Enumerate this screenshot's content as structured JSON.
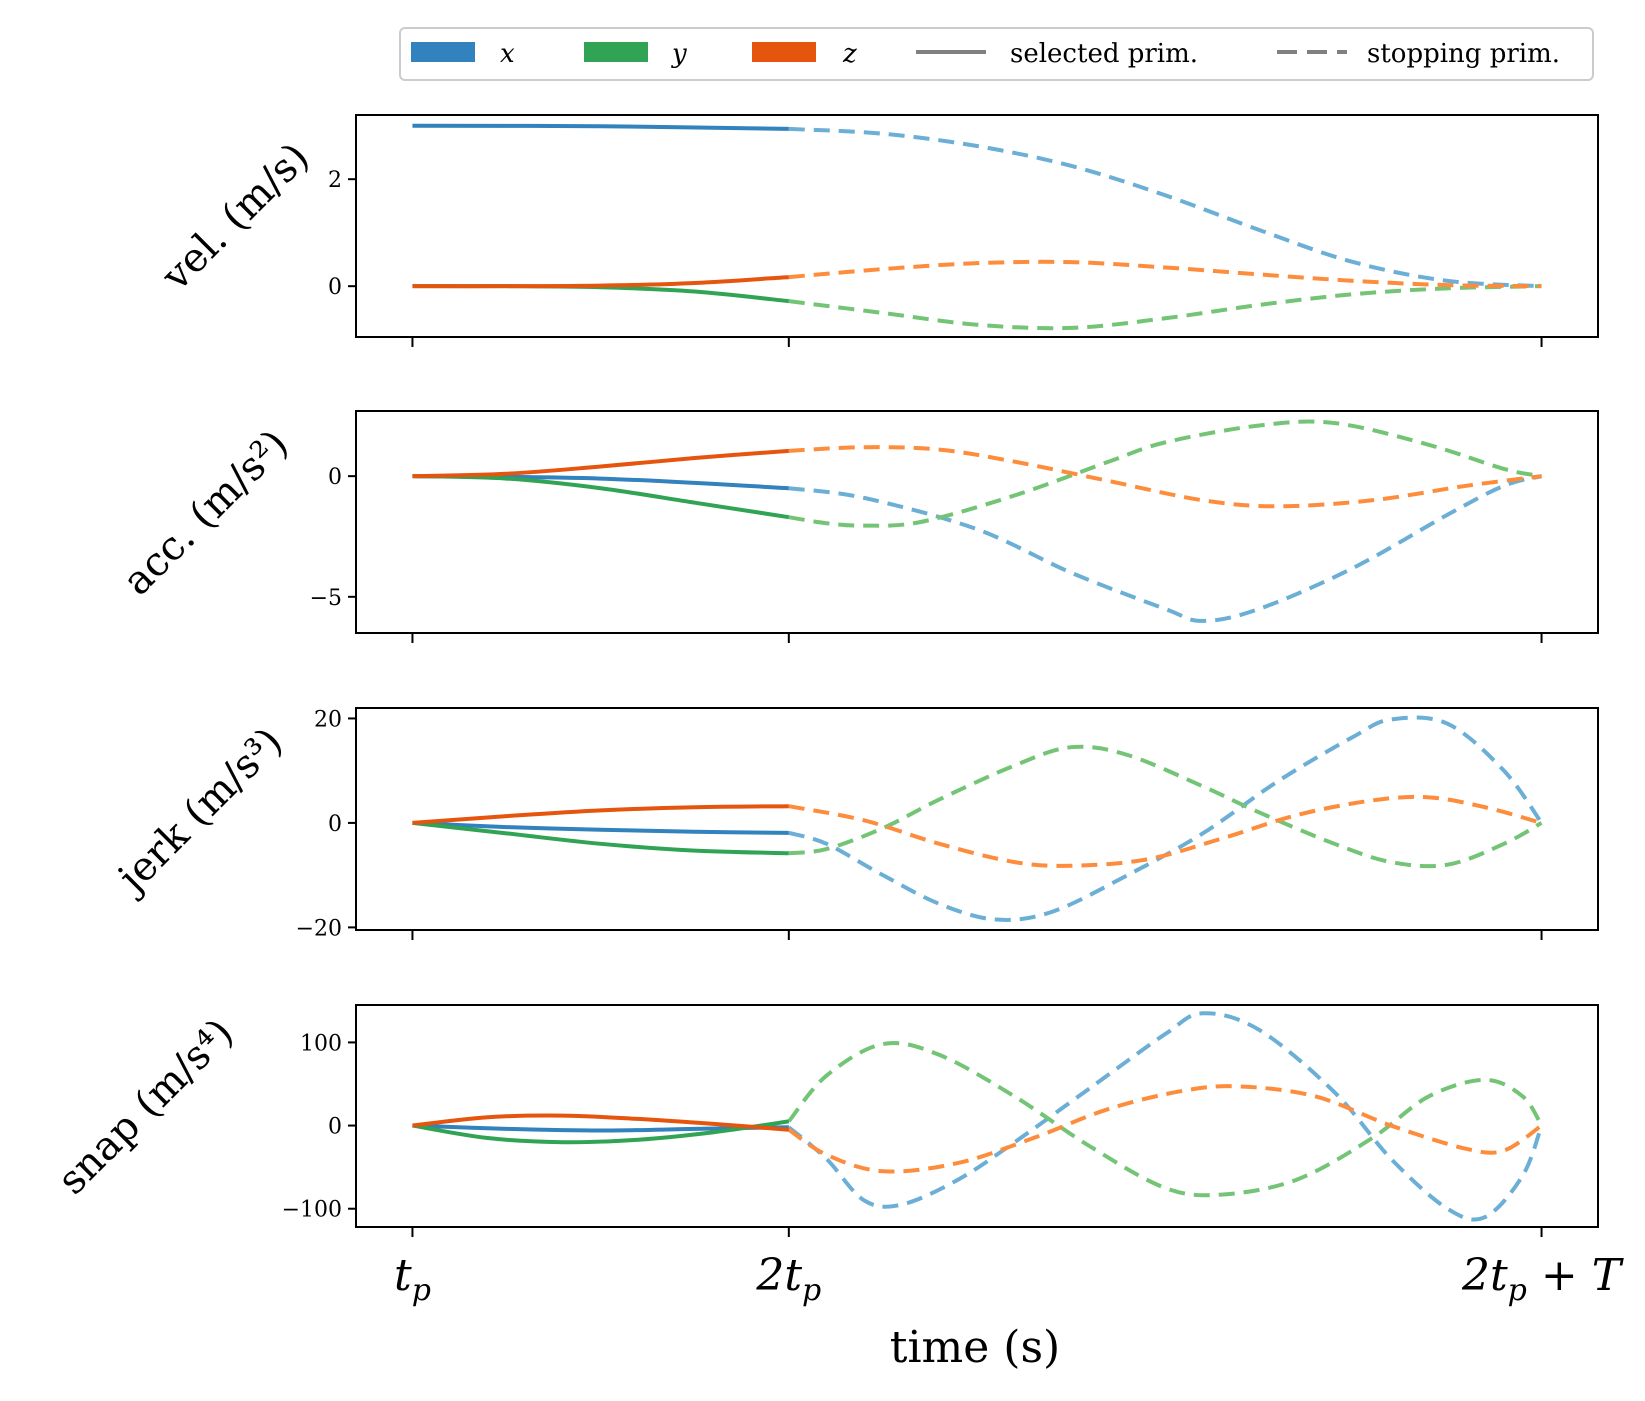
{
  "chart_data": {
    "type": "line",
    "xlabel": "time (s)",
    "x_ticks": [
      {
        "label": "t",
        "sub": "p",
        "suffix": "",
        "value": 1
      },
      {
        "label": "2t",
        "sub": "p",
        "suffix": "",
        "value": 2
      },
      {
        "label": "2t",
        "sub": "p",
        "suffix": " + T",
        "value": 4
      }
    ],
    "x_range": [
      0.85,
      4.15
    ],
    "switch_x": 2,
    "legend": {
      "placement": "top",
      "entries": [
        {
          "label": "x",
          "kind": "color",
          "color": "#3182bd"
        },
        {
          "label": "y",
          "kind": "color",
          "color": "#31a354"
        },
        {
          "label": "z",
          "kind": "color",
          "color": "#e6550d"
        },
        {
          "label": "selected prim.",
          "kind": "style",
          "style": "solid"
        },
        {
          "label": "stopping prim.",
          "kind": "style",
          "style": "dashed"
        }
      ]
    },
    "colors": {
      "x": {
        "selected": "#3182bd",
        "stopping": "#6baed6"
      },
      "y": {
        "selected": "#31a354",
        "stopping": "#74c476"
      },
      "z": {
        "selected": "#e6550d",
        "stopping": "#fd8d3c"
      }
    },
    "panels": [
      {
        "ylabel": "vel. (m/s)",
        "ylim": [
          -0.95,
          3.2
        ],
        "yticks": [
          0,
          2
        ],
        "series": [
          {
            "axis": "x",
            "points": [
              [
                1.0,
                3.0
              ],
              [
                1.5,
                2.99
              ],
              [
                2.0,
                2.94
              ],
              [
                2.25,
                2.85
              ],
              [
                2.5,
                2.62
              ],
              [
                2.75,
                2.25
              ],
              [
                3.0,
                1.7
              ],
              [
                3.25,
                1.05
              ],
              [
                3.5,
                0.45
              ],
              [
                3.75,
                0.1
              ],
              [
                4.0,
                0.0
              ]
            ]
          },
          {
            "axis": "y",
            "points": [
              [
                1.0,
                0.0
              ],
              [
                1.25,
                0.0
              ],
              [
                1.5,
                -0.02
              ],
              [
                1.75,
                -0.1
              ],
              [
                2.0,
                -0.28
              ],
              [
                2.25,
                -0.5
              ],
              [
                2.5,
                -0.72
              ],
              [
                2.75,
                -0.78
              ],
              [
                3.0,
                -0.6
              ],
              [
                3.25,
                -0.35
              ],
              [
                3.5,
                -0.15
              ],
              [
                3.75,
                -0.04
              ],
              [
                4.0,
                0.0
              ]
            ]
          },
          {
            "axis": "z",
            "points": [
              [
                1.0,
                0.0
              ],
              [
                1.25,
                0.0
              ],
              [
                1.5,
                0.01
              ],
              [
                1.75,
                0.06
              ],
              [
                2.0,
                0.17
              ],
              [
                2.25,
                0.32
              ],
              [
                2.5,
                0.43
              ],
              [
                2.75,
                0.45
              ],
              [
                3.0,
                0.35
              ],
              [
                3.25,
                0.22
              ],
              [
                3.5,
                0.1
              ],
              [
                3.75,
                0.02
              ],
              [
                4.0,
                0.0
              ]
            ]
          }
        ]
      },
      {
        "ylabel": "acc. (m/s²)",
        "ylim": [
          -6.5,
          2.7
        ],
        "yticks": [
          0,
          -5
        ],
        "series": [
          {
            "axis": "x",
            "points": [
              [
                1.0,
                0.0
              ],
              [
                1.5,
                -0.1
              ],
              [
                2.0,
                -0.5
              ],
              [
                2.2,
                -0.9
              ],
              [
                2.5,
                -2.2
              ],
              [
                2.75,
                -4.0
              ],
              [
                3.0,
                -5.5
              ],
              [
                3.1,
                -6.0
              ],
              [
                3.25,
                -5.5
              ],
              [
                3.5,
                -3.8
              ],
              [
                3.75,
                -1.6
              ],
              [
                3.9,
                -0.4
              ],
              [
                4.0,
                0.0
              ]
            ]
          },
          {
            "axis": "y",
            "points": [
              [
                1.0,
                0.0
              ],
              [
                1.25,
                -0.1
              ],
              [
                1.5,
                -0.5
              ],
              [
                1.75,
                -1.1
              ],
              [
                2.0,
                -1.7
              ],
              [
                2.1,
                -1.95
              ],
              [
                2.2,
                -2.05
              ],
              [
                2.35,
                -1.9
              ],
              [
                2.6,
                -0.8
              ],
              [
                2.85,
                0.6
              ],
              [
                3.0,
                1.4
              ],
              [
                3.25,
                2.1
              ],
              [
                3.45,
                2.2
              ],
              [
                3.7,
                1.3
              ],
              [
                3.9,
                0.3
              ],
              [
                4.0,
                0.0
              ]
            ]
          },
          {
            "axis": "z",
            "points": [
              [
                1.0,
                0.0
              ],
              [
                1.25,
                0.1
              ],
              [
                1.5,
                0.4
              ],
              [
                1.75,
                0.75
              ],
              [
                2.0,
                1.05
              ],
              [
                2.2,
                1.2
              ],
              [
                2.4,
                1.1
              ],
              [
                2.6,
                0.6
              ],
              [
                2.85,
                -0.2
              ],
              [
                3.1,
                -1.0
              ],
              [
                3.3,
                -1.25
              ],
              [
                3.55,
                -1.0
              ],
              [
                3.8,
                -0.4
              ],
              [
                4.0,
                0.0
              ]
            ]
          }
        ]
      },
      {
        "ylabel": "jerk (m/s³)",
        "ylim": [
          -20.5,
          22
        ],
        "yticks": [
          20,
          0,
          -20
        ],
        "series": [
          {
            "axis": "x",
            "points": [
              [
                1.0,
                0.0
              ],
              [
                1.25,
                -0.8
              ],
              [
                1.5,
                -1.3
              ],
              [
                1.75,
                -1.7
              ],
              [
                2.0,
                -1.9
              ],
              [
                2.1,
                -4.0
              ],
              [
                2.25,
                -10.0
              ],
              [
                2.4,
                -15.5
              ],
              [
                2.55,
                -18.5
              ],
              [
                2.7,
                -17.0
              ],
              [
                2.9,
                -10.0
              ],
              [
                3.1,
                -2.0
              ],
              [
                3.3,
                8.0
              ],
              [
                3.5,
                16.5
              ],
              [
                3.6,
                19.8
              ],
              [
                3.75,
                19.0
              ],
              [
                3.9,
                10.0
              ],
              [
                4.0,
                0.0
              ]
            ]
          },
          {
            "axis": "y",
            "points": [
              [
                1.0,
                0.0
              ],
              [
                1.25,
                -2.0
              ],
              [
                1.5,
                -4.0
              ],
              [
                1.75,
                -5.3
              ],
              [
                2.0,
                -5.8
              ],
              [
                2.1,
                -5.0
              ],
              [
                2.25,
                -1.0
              ],
              [
                2.4,
                4.5
              ],
              [
                2.6,
                11.0
              ],
              [
                2.75,
                14.5
              ],
              [
                2.9,
                13.0
              ],
              [
                3.1,
                7.0
              ],
              [
                3.25,
                2.0
              ],
              [
                3.45,
                -4.0
              ],
              [
                3.6,
                -7.5
              ],
              [
                3.75,
                -8.0
              ],
              [
                3.9,
                -4.0
              ],
              [
                4.0,
                0.0
              ]
            ]
          },
          {
            "axis": "z",
            "points": [
              [
                1.0,
                0.0
              ],
              [
                1.25,
                1.3
              ],
              [
                1.5,
                2.4
              ],
              [
                1.75,
                3.0
              ],
              [
                2.0,
                3.2
              ],
              [
                2.2,
                0.5
              ],
              [
                2.4,
                -4.0
              ],
              [
                2.6,
                -7.5
              ],
              [
                2.75,
                -8.2
              ],
              [
                2.95,
                -7.0
              ],
              [
                3.15,
                -3.0
              ],
              [
                3.35,
                1.5
              ],
              [
                3.55,
                4.3
              ],
              [
                3.7,
                4.9
              ],
              [
                3.85,
                3.0
              ],
              [
                4.0,
                0.0
              ]
            ]
          }
        ]
      },
      {
        "ylabel": "snap (m/s⁴)",
        "ylim": [
          -122,
          145
        ],
        "yticks": [
          100,
          0,
          -100
        ],
        "series": [
          {
            "axis": "x",
            "points": [
              [
                1.0,
                0.0
              ],
              [
                1.25,
                -4.0
              ],
              [
                1.5,
                -6.0
              ],
              [
                1.75,
                -4.0
              ],
              [
                2.0,
                -2.0
              ],
              [
                2.1,
                -40.0
              ],
              [
                2.2,
                -90.0
              ],
              [
                2.3,
                -95.0
              ],
              [
                2.45,
                -65.0
              ],
              [
                2.6,
                -20.0
              ],
              [
                2.8,
                45.0
              ],
              [
                3.0,
                110.0
              ],
              [
                3.1,
                135.0
              ],
              [
                3.25,
                115.0
              ],
              [
                3.45,
                40.0
              ],
              [
                3.6,
                -40.0
              ],
              [
                3.75,
                -100.0
              ],
              [
                3.85,
                -110.0
              ],
              [
                3.95,
                -60.0
              ],
              [
                4.0,
                0.0
              ]
            ]
          },
          {
            "axis": "y",
            "points": [
              [
                1.0,
                0.0
              ],
              [
                1.2,
                -15.0
              ],
              [
                1.4,
                -20.0
              ],
              [
                1.6,
                -17.0
              ],
              [
                1.8,
                -8.0
              ],
              [
                2.0,
                5.0
              ],
              [
                2.1,
                60.0
              ],
              [
                2.25,
                98.0
              ],
              [
                2.4,
                85.0
              ],
              [
                2.6,
                35.0
              ],
              [
                2.8,
                -25.0
              ],
              [
                3.0,
                -75.0
              ],
              [
                3.15,
                -83.0
              ],
              [
                3.35,
                -65.0
              ],
              [
                3.55,
                -15.0
              ],
              [
                3.7,
                35.0
              ],
              [
                3.85,
                55.0
              ],
              [
                3.95,
                35.0
              ],
              [
                4.0,
                0.0
              ]
            ]
          },
          {
            "axis": "z",
            "points": [
              [
                1.0,
                0.0
              ],
              [
                1.2,
                10.0
              ],
              [
                1.4,
                12.0
              ],
              [
                1.6,
                8.0
              ],
              [
                1.8,
                2.0
              ],
              [
                2.0,
                -5.0
              ],
              [
                2.1,
                -35.0
              ],
              [
                2.25,
                -55.0
              ],
              [
                2.45,
                -45.0
              ],
              [
                2.65,
                -15.0
              ],
              [
                2.85,
                20.0
              ],
              [
                3.05,
                42.0
              ],
              [
                3.2,
                47.0
              ],
              [
                3.4,
                35.0
              ],
              [
                3.6,
                0.0
              ],
              [
                3.8,
                -28.0
              ],
              [
                3.9,
                -30.0
              ],
              [
                4.0,
                0.0
              ]
            ]
          }
        ]
      }
    ]
  }
}
